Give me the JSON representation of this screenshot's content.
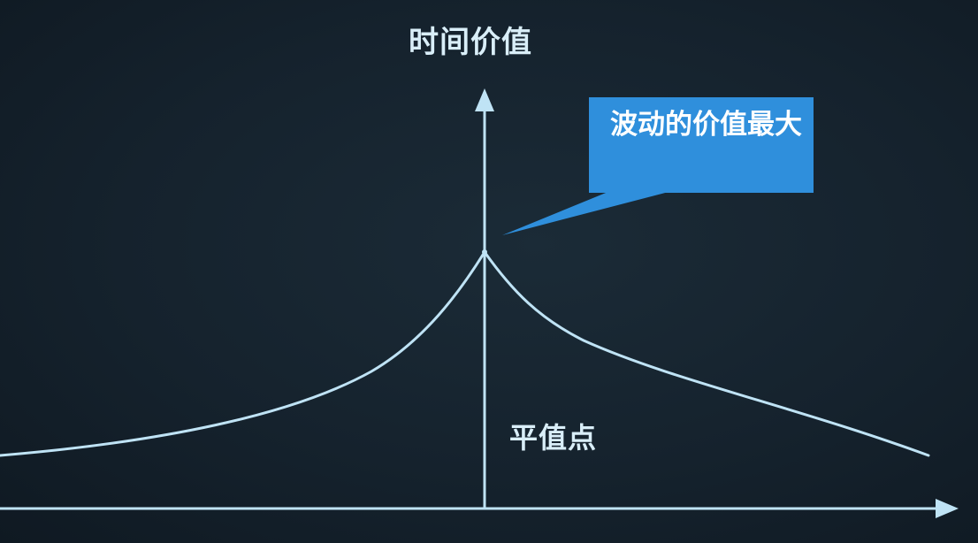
{
  "diagram": {
    "y_axis_title": "时间价值",
    "peak_label": "平值点",
    "callout": {
      "text": "波动的价值最大"
    },
    "colors": {
      "background": "#15222d",
      "line": "#bfe3f5",
      "callout_fill": "#2f8fdc",
      "text": "#d9eef8"
    }
  }
}
